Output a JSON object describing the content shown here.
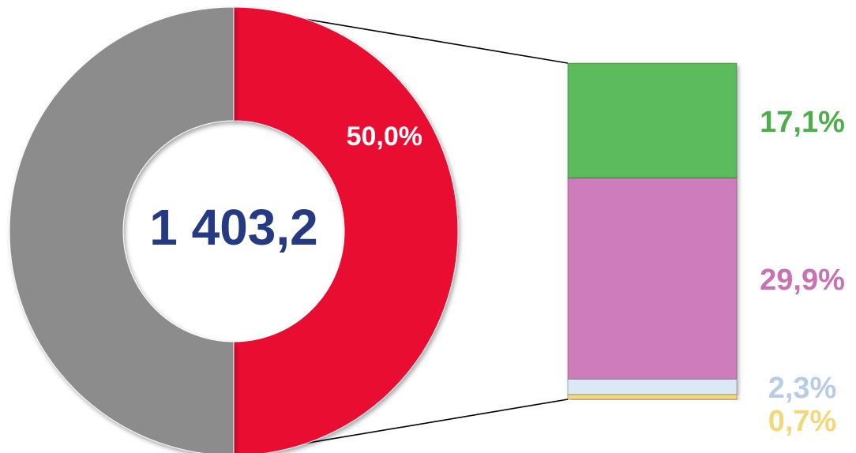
{
  "chart_data": {
    "type": "pie",
    "subtype": "doughnut-with-breakdown-bar",
    "center_total": "1 403,2",
    "doughnut": {
      "slices": [
        {
          "value": 50.0,
          "label": "50,0%",
          "color": "#EA0A33",
          "show_label": true
        },
        {
          "value": 50.0,
          "label": "",
          "color": "#8C8C8C",
          "show_label": false
        }
      ]
    },
    "breakdown_bar": {
      "segments": [
        {
          "value": 17.1,
          "label": "17,1%",
          "color": "#5BBB5B",
          "label_color": "#4FAE4C"
        },
        {
          "value": 29.9,
          "label": "29,9%",
          "color": "#CE7BBC",
          "label_color": "#C772B3"
        },
        {
          "value": 2.3,
          "label": "2,3%",
          "color": "#DDE8F6",
          "label_color": "#B7CDE6"
        },
        {
          "value": 0.7,
          "label": "0,7%",
          "color": "#F5D77A",
          "label_color": "#F3D77B"
        }
      ]
    },
    "colors": {
      "center_text": "#253A82",
      "slice_label": "#FFFFFF",
      "connector": "#000000"
    }
  }
}
